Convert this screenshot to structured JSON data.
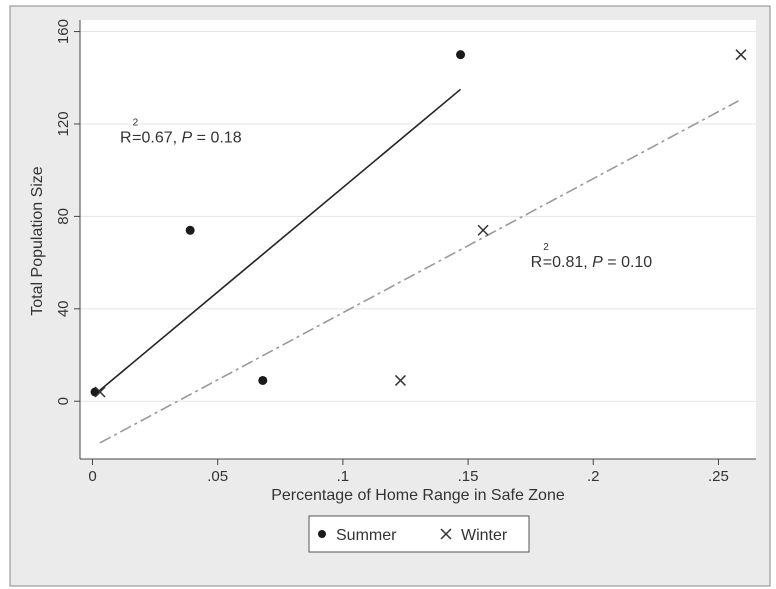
{
  "chart_data": {
    "type": "scatter",
    "title": "",
    "xlabel": "Percentage of Home Range in Safe Zone",
    "ylabel": "Total Population Size",
    "xlim": [
      -0.005,
      0.265
    ],
    "ylim": [
      -25,
      165
    ],
    "x_ticks": [
      0,
      0.05,
      0.1,
      0.15,
      0.2,
      0.25
    ],
    "x_tick_labels": [
      "0",
      ".05",
      ".1",
      ".15",
      ".2",
      ".25"
    ],
    "y_ticks": [
      0,
      40,
      80,
      120,
      160
    ],
    "y_tick_labels": [
      "0",
      "40",
      "80",
      "120",
      "160"
    ],
    "grid": "horizontal",
    "legend_position": "bottom",
    "colors": {
      "plot_background": "#ffffff",
      "frame_background": "#ebebeb",
      "grid": "#e4e4e4",
      "summer": "#1a1a1a",
      "winter": "#333333",
      "summer_fit": "#222222",
      "winter_fit": "#9a9a9a",
      "text": "#333333"
    },
    "series": [
      {
        "name": "Summer",
        "marker": "filled-circle",
        "points": [
          {
            "x": 0.001,
            "y": 4
          },
          {
            "x": 0.039,
            "y": 74
          },
          {
            "x": 0.068,
            "y": 9
          },
          {
            "x": 0.147,
            "y": 150
          }
        ],
        "fit_line": {
          "x": [
            0.001,
            0.147
          ],
          "y": [
            3,
            135
          ],
          "style": "solid"
        },
        "annotation": {
          "r_label": "R",
          "sup": "2",
          "rest": "=0.67, ",
          "p": "P",
          "p_rest": " = 0.18",
          "x": 0.011,
          "y": 112
        }
      },
      {
        "name": "Winter",
        "marker": "x",
        "points": [
          {
            "x": 0.003,
            "y": 4
          },
          {
            "x": 0.123,
            "y": 9
          },
          {
            "x": 0.156,
            "y": 74
          },
          {
            "x": 0.259,
            "y": 150
          }
        ],
        "fit_line": {
          "x": [
            0.003,
            0.258
          ],
          "y": [
            -18,
            130
          ],
          "style": "dash-dot"
        },
        "annotation": {
          "r_label": "R",
          "sup": "2",
          "rest": "=0.81, ",
          "p": "P",
          "p_rest": " = 0.10",
          "x": 0.175,
          "y": 58
        }
      }
    ],
    "legend": {
      "entries": [
        {
          "label": "Summer",
          "marker": "filled-circle"
        },
        {
          "label": "Winter",
          "marker": "x"
        }
      ]
    }
  }
}
